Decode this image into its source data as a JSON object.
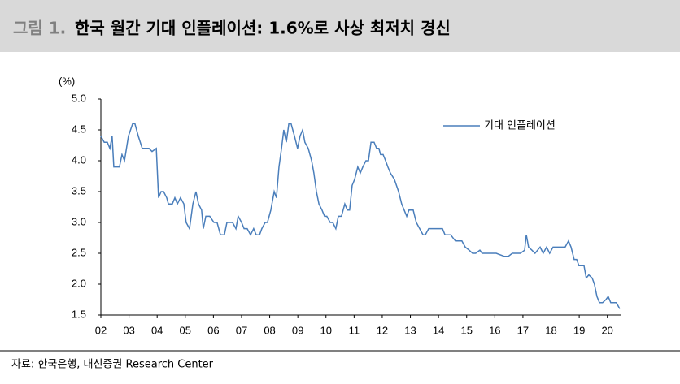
{
  "figure_label": "그림 1.",
  "source": "자료: 한국은행, 대신증권 Research Center",
  "chart_data": {
    "type": "line",
    "title": "한국 월간 기대 인플레이션: 1.6%로 사상 최저치 경신",
    "y_unit_label": "(%)",
    "legend_position": "upper-right",
    "xlim": [
      2002,
      2020.5
    ],
    "ylim": [
      1.5,
      5.0
    ],
    "yticks": [
      {
        "value": 1.5,
        "label": "1.5"
      },
      {
        "value": 2.0,
        "label": "2.0"
      },
      {
        "value": 2.5,
        "label": "2.5"
      },
      {
        "value": 3.0,
        "label": "3.0"
      },
      {
        "value": 3.5,
        "label": "3.5"
      },
      {
        "value": 4.0,
        "label": "4.0"
      },
      {
        "value": 4.5,
        "label": "4.5"
      },
      {
        "value": 5.0,
        "label": "5.0"
      }
    ],
    "xticks": [
      {
        "value": 2002,
        "label": "02"
      },
      {
        "value": 2003,
        "label": "03"
      },
      {
        "value": 2004,
        "label": "04"
      },
      {
        "value": 2005,
        "label": "05"
      },
      {
        "value": 2006,
        "label": "06"
      },
      {
        "value": 2007,
        "label": "07"
      },
      {
        "value": 2008,
        "label": "08"
      },
      {
        "value": 2009,
        "label": "09"
      },
      {
        "value": 2010,
        "label": "10"
      },
      {
        "value": 2011,
        "label": "11"
      },
      {
        "value": 2012,
        "label": "12"
      },
      {
        "value": 2013,
        "label": "13"
      },
      {
        "value": 2014,
        "label": "14"
      },
      {
        "value": 2015,
        "label": "15"
      },
      {
        "value": 2016,
        "label": "16"
      },
      {
        "value": 2017,
        "label": "17"
      },
      {
        "value": 2018,
        "label": "18"
      },
      {
        "value": 2019,
        "label": "19"
      },
      {
        "value": 2020,
        "label": "20"
      }
    ],
    "x": [
      2002.0,
      2002.12,
      2002.23,
      2002.32,
      2002.4,
      2002.46,
      2002.66,
      2002.75,
      2002.84,
      2002.98,
      2003.13,
      2003.21,
      2003.33,
      2003.47,
      2003.71,
      2003.82,
      2003.97,
      2004.05,
      2004.14,
      2004.23,
      2004.34,
      2004.4,
      2004.54,
      2004.63,
      2004.72,
      2004.83,
      2004.95,
      2005.03,
      2005.15,
      2005.27,
      2005.38,
      2005.47,
      2005.58,
      2005.64,
      2005.73,
      2005.87,
      2006.02,
      2006.13,
      2006.25,
      2006.39,
      2006.48,
      2006.68,
      2006.8,
      2006.88,
      2007.0,
      2007.09,
      2007.2,
      2007.32,
      2007.43,
      2007.52,
      2007.64,
      2007.72,
      2007.84,
      2007.92,
      2008.04,
      2008.16,
      2008.24,
      2008.33,
      2008.42,
      2008.5,
      2008.59,
      2008.68,
      2008.76,
      2008.88,
      2008.99,
      2009.08,
      2009.17,
      2009.25,
      2009.37,
      2009.49,
      2009.57,
      2009.66,
      2009.75,
      2009.86,
      2009.95,
      2010.03,
      2010.15,
      2010.24,
      2010.35,
      2010.44,
      2010.55,
      2010.67,
      2010.76,
      2010.84,
      2010.93,
      2011.02,
      2011.13,
      2011.22,
      2011.31,
      2011.42,
      2011.51,
      2011.6,
      2011.71,
      2011.8,
      2011.88,
      2011.94,
      2012.03,
      2012.12,
      2012.2,
      2012.29,
      2012.43,
      2012.58,
      2012.69,
      2012.78,
      2012.87,
      2012.95,
      2013.1,
      2013.21,
      2013.33,
      2013.45,
      2013.53,
      2013.65,
      2013.88,
      2014.14,
      2014.23,
      2014.31,
      2014.43,
      2014.6,
      2014.72,
      2014.83,
      2014.95,
      2015.09,
      2015.21,
      2015.32,
      2015.47,
      2015.55,
      2015.76,
      2016.05,
      2016.34,
      2016.48,
      2016.62,
      2016.91,
      2017.06,
      2017.12,
      2017.2,
      2017.32,
      2017.43,
      2017.52,
      2017.61,
      2017.72,
      2017.84,
      2017.95,
      2018.07,
      2018.36,
      2018.5,
      2018.62,
      2018.71,
      2018.82,
      2018.91,
      2018.99,
      2019.17,
      2019.25,
      2019.34,
      2019.46,
      2019.54,
      2019.63,
      2019.72,
      2019.83,
      2019.95,
      2020.03,
      2020.12,
      2020.24,
      2020.32,
      2020.44
    ],
    "series": [
      {
        "name": "기대 인플레이션",
        "color": "#4a7ebb",
        "values": [
          4.4,
          4.3,
          4.3,
          4.2,
          4.4,
          3.9,
          3.9,
          4.1,
          4.0,
          4.4,
          4.6,
          4.6,
          4.4,
          4.2,
          4.2,
          4.15,
          4.2,
          3.4,
          3.5,
          3.5,
          3.4,
          3.3,
          3.3,
          3.4,
          3.3,
          3.4,
          3.3,
          3.0,
          2.9,
          3.3,
          3.5,
          3.3,
          3.2,
          2.9,
          3.1,
          3.1,
          3.0,
          3.0,
          2.8,
          2.8,
          3.0,
          3.0,
          2.9,
          3.1,
          3.0,
          2.9,
          2.9,
          2.8,
          2.9,
          2.8,
          2.8,
          2.9,
          3.0,
          3.0,
          3.2,
          3.5,
          3.4,
          3.9,
          4.2,
          4.5,
          4.3,
          4.6,
          4.6,
          4.4,
          4.2,
          4.4,
          4.5,
          4.3,
          4.2,
          4.0,
          3.8,
          3.5,
          3.3,
          3.2,
          3.1,
          3.1,
          3.0,
          3.0,
          2.9,
          3.1,
          3.1,
          3.3,
          3.2,
          3.2,
          3.6,
          3.7,
          3.9,
          3.8,
          3.9,
          4.0,
          4.0,
          4.3,
          4.3,
          4.2,
          4.2,
          4.1,
          4.1,
          4.0,
          3.9,
          3.8,
          3.7,
          3.5,
          3.3,
          3.2,
          3.1,
          3.2,
          3.2,
          3.0,
          2.9,
          2.8,
          2.8,
          2.9,
          2.9,
          2.9,
          2.8,
          2.8,
          2.8,
          2.7,
          2.7,
          2.7,
          2.6,
          2.55,
          2.5,
          2.5,
          2.55,
          2.5,
          2.5,
          2.5,
          2.45,
          2.45,
          2.5,
          2.5,
          2.55,
          2.8,
          2.6,
          2.55,
          2.5,
          2.55,
          2.6,
          2.5,
          2.6,
          2.5,
          2.6,
          2.6,
          2.6,
          2.7,
          2.6,
          2.4,
          2.4,
          2.3,
          2.3,
          2.1,
          2.15,
          2.1,
          2.0,
          1.8,
          1.7,
          1.7,
          1.75,
          1.8,
          1.7,
          1.7,
          1.7,
          1.6
        ]
      }
    ]
  }
}
